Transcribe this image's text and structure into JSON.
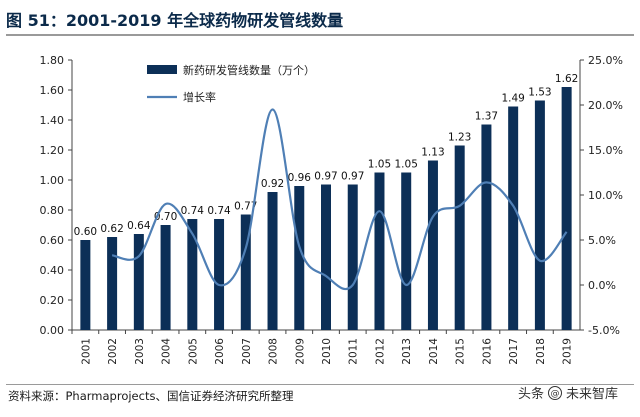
{
  "title": "图 51：2001-2019 年全球药物研发管线数量",
  "source": "资料来源：Pharmaprojects、国信证券经济研究所整理",
  "watermark": {
    "prefix": "头条",
    "at": "@",
    "name": "未来智库"
  },
  "colors": {
    "bar": "#0c2f57",
    "line": "#4f7fb5",
    "axis": "#444444",
    "title": "#0b2a4a"
  },
  "chart_data": {
    "type": "bar+line",
    "categories": [
      "2001",
      "2002",
      "2003",
      "2004",
      "2005",
      "2006",
      "2007",
      "2008",
      "2009",
      "2010",
      "2011",
      "2012",
      "2013",
      "2014",
      "2015",
      "2016",
      "2017",
      "2018",
      "2019"
    ],
    "series": [
      {
        "name": "新药研发管线数量（万个）",
        "type": "bar",
        "axis": "left",
        "values": [
          0.6,
          0.62,
          0.64,
          0.7,
          0.74,
          0.74,
          0.77,
          0.92,
          0.96,
          0.97,
          0.97,
          1.05,
          1.05,
          1.13,
          1.23,
          1.37,
          1.49,
          1.53,
          1.62
        ],
        "labels": [
          "0.60",
          "0.62",
          "0.64",
          "0.70",
          "0.74",
          "0.74",
          "0.77",
          "0.92",
          "0.96",
          "0.97",
          "0.97",
          "1.05",
          "1.05",
          "1.13",
          "1.23",
          "1.37",
          "1.49",
          "1.53",
          "1.62"
        ]
      },
      {
        "name": "增长率",
        "type": "line",
        "axis": "right",
        "values": [
          null,
          3.3,
          3.2,
          9.0,
          5.7,
          0.0,
          4.1,
          19.5,
          4.3,
          1.0,
          0.0,
          8.2,
          0.0,
          7.6,
          8.8,
          11.4,
          8.8,
          2.7,
          5.9
        ]
      }
    ],
    "y_left": {
      "min": 0,
      "max": 1.8,
      "ticks": [
        "0.00",
        "0.20",
        "0.40",
        "0.60",
        "0.80",
        "1.00",
        "1.20",
        "1.40",
        "1.60",
        "1.80"
      ]
    },
    "y_right": {
      "min": -5,
      "max": 25,
      "ticks": [
        "-5.0%",
        "0.0%",
        "5.0%",
        "10.0%",
        "15.0%",
        "20.0%",
        "25.0%"
      ]
    },
    "legend": [
      "新药研发管线数量（万个）",
      "增长率"
    ],
    "legend_position": "top-left"
  }
}
